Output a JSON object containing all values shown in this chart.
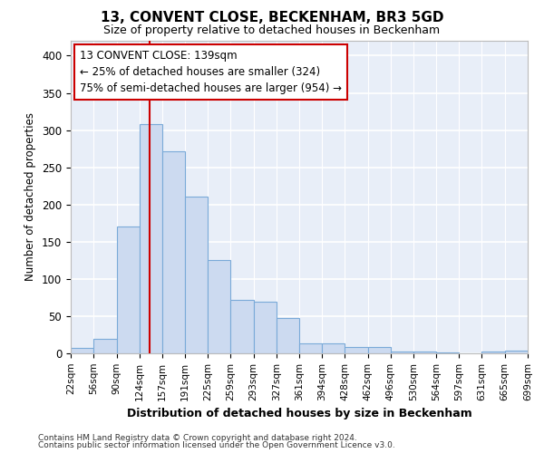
{
  "title_line1": "13, CONVENT CLOSE, BECKENHAM, BR3 5GD",
  "title_line2": "Size of property relative to detached houses in Beckenham",
  "xlabel": "Distribution of detached houses by size in Beckenham",
  "ylabel": "Number of detached properties",
  "bar_color": "#ccdaf0",
  "bar_edge_color": "#7aaad8",
  "plot_bg_color": "#e8eef8",
  "fig_bg_color": "#ffffff",
  "grid_color": "#ffffff",
  "property_line_x": 139,
  "property_line_color": "#cc0000",
  "annotation_text": "13 CONVENT CLOSE: 139sqm\n← 25% of detached houses are smaller (324)\n75% of semi-detached houses are larger (954) →",
  "annotation_box_facecolor": "#ffffff",
  "annotation_box_edgecolor": "#cc0000",
  "bin_edges": [
    22,
    56,
    90,
    124,
    157,
    191,
    225,
    259,
    293,
    327,
    361,
    394,
    428,
    462,
    496,
    530,
    564,
    597,
    631,
    665,
    699
  ],
  "bar_heights": [
    7,
    20,
    170,
    308,
    272,
    210,
    125,
    72,
    70,
    48,
    14,
    13,
    8,
    8,
    3,
    2,
    1,
    0,
    2,
    4
  ],
  "ylim": [
    0,
    420
  ],
  "yticks": [
    0,
    50,
    100,
    150,
    200,
    250,
    300,
    350,
    400
  ],
  "footnote1": "Contains HM Land Registry data © Crown copyright and database right 2024.",
  "footnote2": "Contains public sector information licensed under the Open Government Licence v3.0."
}
